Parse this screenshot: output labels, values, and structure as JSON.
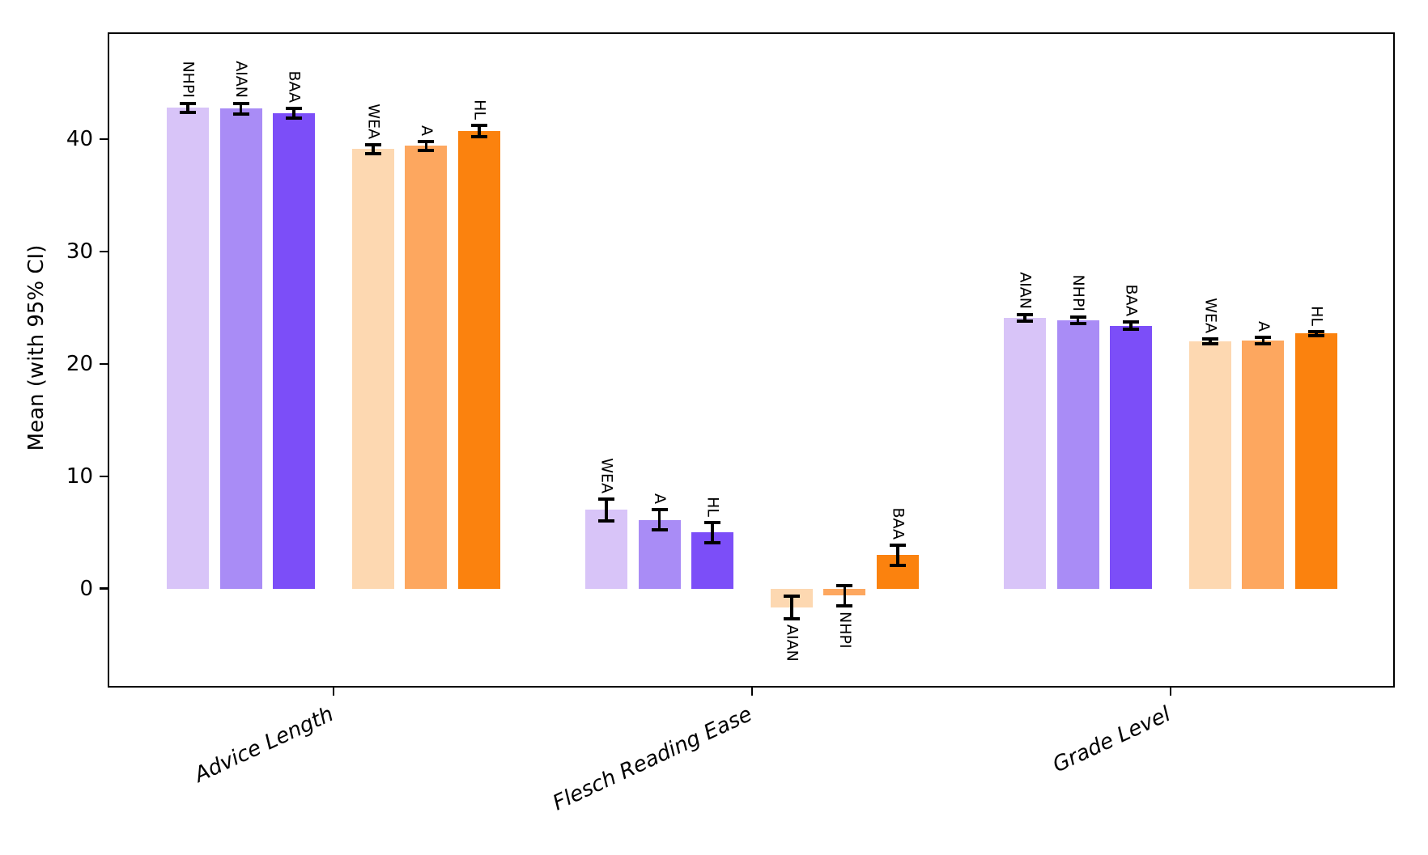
{
  "chart_data": {
    "type": "bar",
    "title": "",
    "xlabel": "",
    "ylabel": "Mean (with 95% CI)",
    "yticks": [
      0,
      10,
      20,
      30,
      40
    ],
    "ylim": [
      -8.8,
      49.5
    ],
    "grid": false,
    "legend": "none",
    "error_bars": "95% CI, black caps",
    "groups": [
      {
        "label": "Advice Length",
        "bars": [
          {
            "label": "NHPI",
            "value": 42.8,
            "ci": 0.4,
            "color": "#d8c4f8"
          },
          {
            "label": "AIAN",
            "value": 42.7,
            "ci": 0.5,
            "color": "#a98cf6"
          },
          {
            "label": "BAA",
            "value": 42.3,
            "ci": 0.4,
            "color": "#7c4ef8"
          },
          {
            "label": "WEA",
            "value": 39.1,
            "ci": 0.4,
            "color": "#fdd8b1"
          },
          {
            "label": "A",
            "value": 39.4,
            "ci": 0.4,
            "color": "#fda75f"
          },
          {
            "label": "HL",
            "value": 40.7,
            "ci": 0.5,
            "color": "#fb820e"
          }
        ]
      },
      {
        "label": "Flesch Reading Ease",
        "bars": [
          {
            "label": "WEA",
            "value": 7.0,
            "ci": 1.0,
            "color": "#d8c4f8"
          },
          {
            "label": "A",
            "value": 6.1,
            "ci": 0.9,
            "color": "#a98cf6"
          },
          {
            "label": "HL",
            "value": 5.0,
            "ci": 0.9,
            "color": "#7c4ef8"
          },
          {
            "label": "AIAN",
            "value": -1.7,
            "ci": 1.0,
            "color": "#fdd8b1"
          },
          {
            "label": "NHPI",
            "value": -0.6,
            "ci": 0.9,
            "color": "#fda75f"
          },
          {
            "label": "BAA",
            "value": 3.0,
            "ci": 0.9,
            "color": "#fb820e"
          }
        ]
      },
      {
        "label": "Grade Level",
        "bars": [
          {
            "label": "AIAN",
            "value": 24.1,
            "ci": 0.3,
            "color": "#d8c4f8"
          },
          {
            "label": "NHPI",
            "value": 23.9,
            "ci": 0.3,
            "color": "#a98cf6"
          },
          {
            "label": "BAA",
            "value": 23.4,
            "ci": 0.3,
            "color": "#7c4ef8"
          },
          {
            "label": "WEA",
            "value": 22.0,
            "ci": 0.2,
            "color": "#fdd8b1"
          },
          {
            "label": "A",
            "value": 22.1,
            "ci": 0.3,
            "color": "#fda75f"
          },
          {
            "label": "HL",
            "value": 22.7,
            "ci": 0.2,
            "color": "#fb820e"
          }
        ]
      }
    ]
  }
}
